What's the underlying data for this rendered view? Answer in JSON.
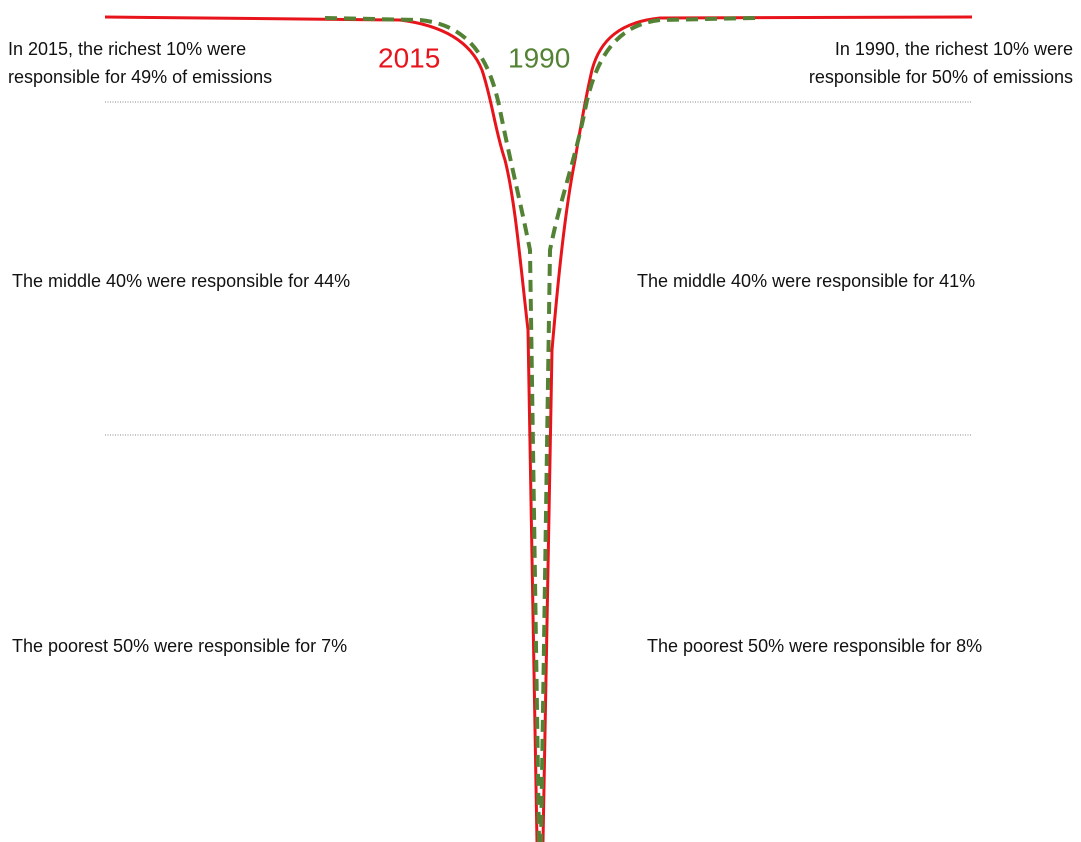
{
  "labels": {
    "left": "2015",
    "right": "1990"
  },
  "annotations": {
    "left": {
      "top": [
        "In 2015, the richest 10% were",
        "responsible for 49% of emissions"
      ],
      "middle": "The middle 40% were responsible for 44%",
      "bottom": "The poorest 50% were responsible for 7%"
    },
    "right": {
      "top": [
        "In 1990, the richest 10% were",
        "responsible for 50% of emissions"
      ],
      "middle": "The middle 40% were responsible for 41%",
      "bottom": "The poorest 50% were responsible for 8%"
    }
  }
}
